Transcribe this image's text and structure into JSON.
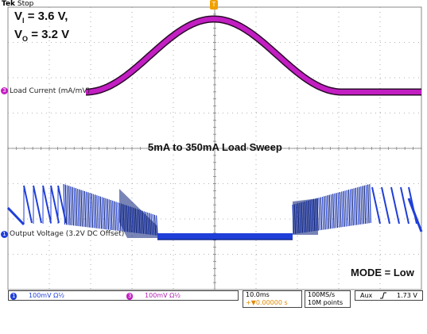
{
  "header": {
    "brand": "Tek",
    "state": "Stop"
  },
  "annotations": {
    "vi_label": "V",
    "vi_sub": "I",
    "vi_value": " = 3.6 V,",
    "vo_label": "V",
    "vo_sub": "O",
    "vo_value": " = 3.2 V",
    "sweep": "5mA to 350mA Load Sweep",
    "mode": "MODE = Low"
  },
  "channels": [
    {
      "id": "1",
      "marker": "1",
      "name": "Output Voltage (3.2V DC Offset)",
      "scale": "100mV",
      "coupling": "Ω½",
      "color": "#1f3fd8"
    },
    {
      "id": "3",
      "marker": "3",
      "name": "Load Current (mA/mV)",
      "scale": "100mV",
      "coupling": "Ω½",
      "color": "#b020b0"
    }
  ],
  "timebase": {
    "per_div": "10.0ms",
    "position": "+▼0.00000 s",
    "sample_rate": "100MS/s",
    "record_length": "10M points"
  },
  "trigger": {
    "source": "Aux",
    "slope_icon": "rising-edge",
    "level": "1.73 V"
  },
  "trigger_marker": "T",
  "colors": {
    "ch1": "#1f3fd8",
    "ch3": "#c21ec2",
    "grid": "#9a9a9a",
    "trigger": "#f0a000"
  }
}
